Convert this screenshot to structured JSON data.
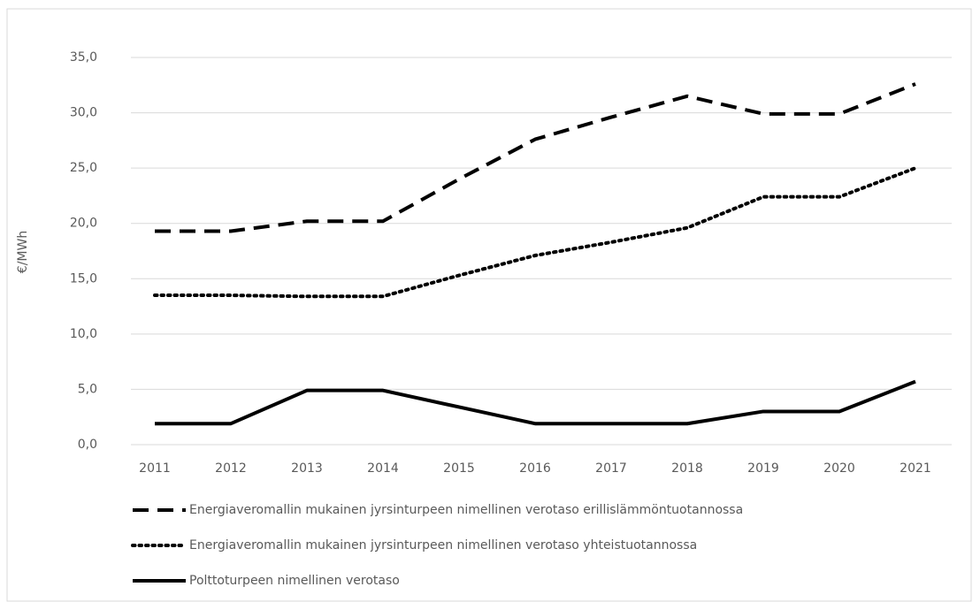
{
  "chart_data": {
    "type": "line",
    "ylabel": "€/MWh",
    "categories": [
      "2011",
      "2012",
      "2013",
      "2014",
      "2015",
      "2016",
      "2017",
      "2018",
      "2019",
      "2020",
      "2021"
    ],
    "series": [
      {
        "name": "Energiaveromallin mukainen jyrsinturpeen nimellinen verotaso erillislämmöntuotannossa",
        "color": "#000000",
        "dash": "dashed",
        "values": [
          19.3,
          19.3,
          20.2,
          20.2,
          24.0,
          27.6,
          29.6,
          31.5,
          29.9,
          29.9,
          32.6
        ]
      },
      {
        "name": "Energiaveromallin mukainen jyrsinturpeen nimellinen verotaso yhteistuotannossa",
        "color": "#000000",
        "dash": "dotted",
        "values": [
          13.5,
          13.5,
          13.4,
          13.4,
          15.3,
          17.1,
          18.3,
          19.6,
          22.4,
          22.4,
          25.0
        ]
      },
      {
        "name": "Polttoturpeen nimellinen verotaso",
        "color": "#000000",
        "dash": "solid",
        "values": [
          1.9,
          1.9,
          4.9,
          4.9,
          3.4,
          1.9,
          1.9,
          1.9,
          3.0,
          3.0,
          5.7
        ]
      }
    ],
    "ylim": [
      0,
      35
    ],
    "yticks": [
      {
        "value": 0,
        "label": "0,0"
      },
      {
        "value": 5,
        "label": "5,0"
      },
      {
        "value": 10,
        "label": "10,0"
      },
      {
        "value": 15,
        "label": "15,0"
      },
      {
        "value": 20,
        "label": "20,0"
      },
      {
        "value": 25,
        "label": "25,0"
      },
      {
        "value": 30,
        "label": "30,0"
      },
      {
        "value": 35,
        "label": "35,0"
      }
    ],
    "grid": true,
    "legend": "bottom"
  }
}
